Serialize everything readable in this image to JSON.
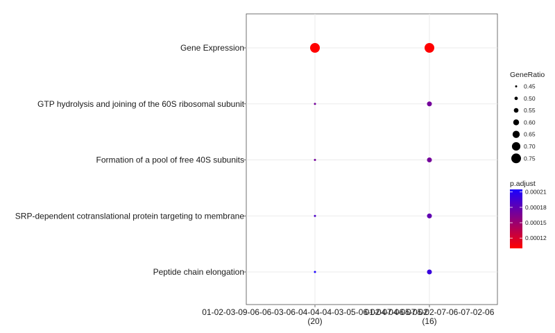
{
  "chart_data": {
    "type": "scatter",
    "categories": [
      "Gene Expression",
      "GTP hydrolysis and joining of the 60S ribosomal subunit",
      "Formation of a pool of free 40S subunits",
      "SRP-dependent cotranslational protein targeting to membrane",
      "Peptide chain elongation"
    ],
    "x_groups": [
      {
        "line1": "01-02-03-09-06-06-03-06-04-04-04-03-05-06-02-07-06-07-02",
        "line2": "(20)"
      },
      {
        "line1": "01-04-04-05-05-02-07-06-07-02-06",
        "line2": "(16)"
      }
    ],
    "series": [
      {
        "group_index": 0,
        "points": [
          {
            "category": "Gene Expression",
            "gene_ratio": 0.75,
            "p_adjust": 0.0001
          },
          {
            "category": "GTP hydrolysis and joining of the 60S ribosomal subunit",
            "gene_ratio": 0.45,
            "p_adjust": 0.00017
          },
          {
            "category": "Formation of a pool of free 40S subunits",
            "gene_ratio": 0.45,
            "p_adjust": 0.00017
          },
          {
            "category": "SRP-dependent cotranslational protein targeting to membrane",
            "gene_ratio": 0.45,
            "p_adjust": 0.00019
          },
          {
            "category": "Peptide chain elongation",
            "gene_ratio": 0.45,
            "p_adjust": 0.000215
          }
        ]
      },
      {
        "group_index": 1,
        "points": [
          {
            "category": "Gene Expression",
            "gene_ratio": 0.75,
            "p_adjust": 0.0001
          },
          {
            "category": "GTP hydrolysis and joining of the 60S ribosomal subunit",
            "gene_ratio": 0.56,
            "p_adjust": 0.00017
          },
          {
            "category": "Formation of a pool of free 40S subunits",
            "gene_ratio": 0.56,
            "p_adjust": 0.00017
          },
          {
            "category": "SRP-dependent cotranslational protein targeting to membrane",
            "gene_ratio": 0.56,
            "p_adjust": 0.00018
          },
          {
            "category": "Peptide chain elongation",
            "gene_ratio": 0.56,
            "p_adjust": 0.0002
          }
        ]
      }
    ],
    "legend_size": {
      "title": "GeneRatio",
      "items": [
        {
          "label": "0.45",
          "value": 0.45
        },
        {
          "label": "0.50",
          "value": 0.5
        },
        {
          "label": "0.55",
          "value": 0.55
        },
        {
          "label": "0.60",
          "value": 0.6
        },
        {
          "label": "0.65",
          "value": 0.65
        },
        {
          "label": "0.70",
          "value": 0.7
        },
        {
          "label": "0.75",
          "value": 0.75
        }
      ]
    },
    "legend_color": {
      "title": "p.adjust",
      "min": 0.0001,
      "max": 0.000215,
      "low_color": "#ff0000",
      "high_color": "#1a00ff",
      "ticks": [
        {
          "label": "0.00021",
          "value": 0.00021
        },
        {
          "label": "0.00018",
          "value": 0.00018
        },
        {
          "label": "0.00015",
          "value": 0.00015
        },
        {
          "label": "0.00012",
          "value": 0.00012
        }
      ]
    },
    "grid": true,
    "legend_position": "right"
  }
}
